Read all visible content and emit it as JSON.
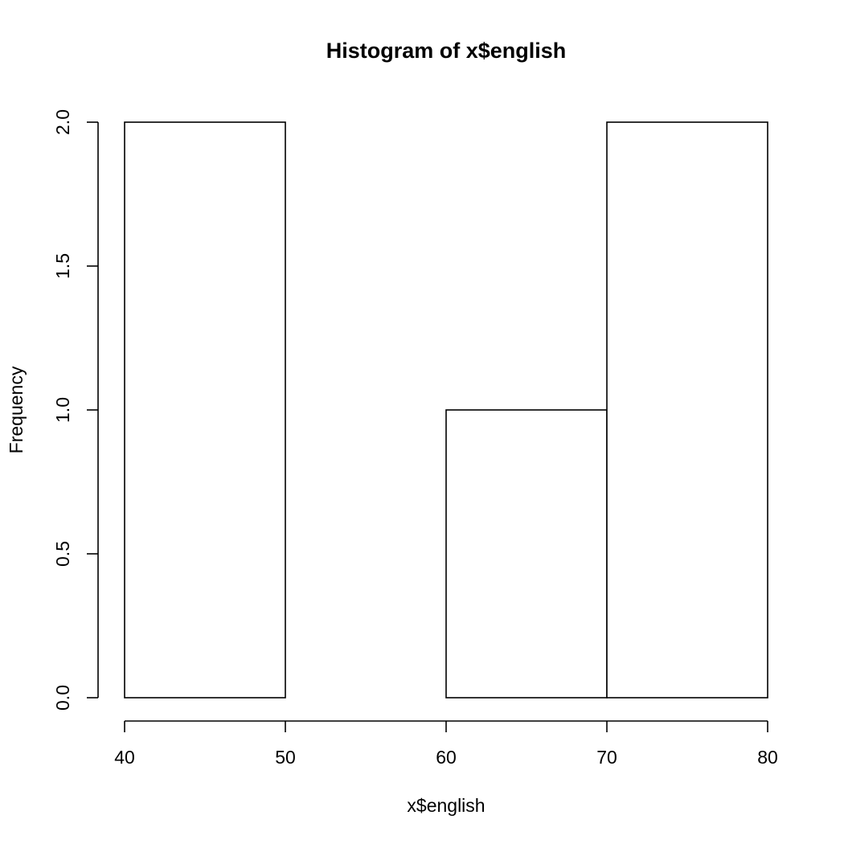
{
  "chart_data": {
    "type": "bar",
    "title": "Histogram of x$english",
    "xlabel": "x$english",
    "ylabel": "Frequency",
    "bins": [
      {
        "start": 40,
        "end": 50,
        "count": 2
      },
      {
        "start": 50,
        "end": 60,
        "count": 0
      },
      {
        "start": 60,
        "end": 70,
        "count": 1
      },
      {
        "start": 70,
        "end": 80,
        "count": 2
      }
    ],
    "xlim": [
      40,
      80
    ],
    "ylim": [
      0,
      2
    ],
    "x_ticks": [
      "40",
      "50",
      "60",
      "70",
      "80"
    ],
    "y_ticks": [
      "0.0",
      "0.5",
      "1.0",
      "1.5",
      "2.0"
    ],
    "grid": false,
    "bar_fill": "#ffffff",
    "bar_stroke": "#000000"
  }
}
